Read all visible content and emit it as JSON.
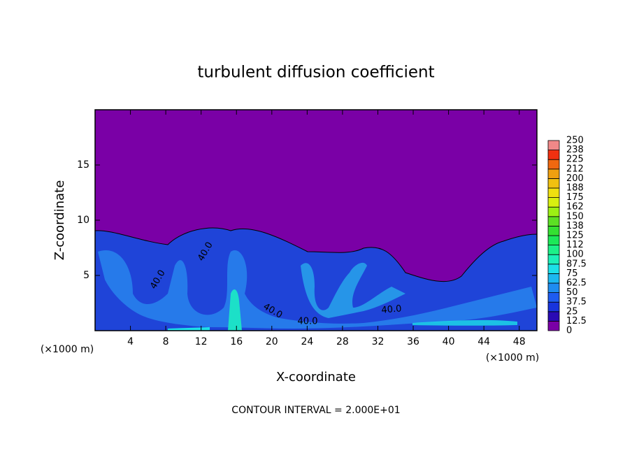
{
  "chart_data": {
    "type": "contour",
    "title": "turbulent diffusion coefficient",
    "xlabel": "X-coordinate",
    "ylabel": "Z-coordinate",
    "y_scale_label": "(×1000 m)",
    "x_scale_label": "(×1000 m)",
    "annotation": "CONTOUR INTERVAL = 2.000E+01",
    "xlim": [
      0,
      50
    ],
    "xticks": [
      4,
      8,
      12,
      16,
      20,
      24,
      28,
      32,
      36,
      40,
      44,
      48
    ],
    "ylim": [
      0,
      20
    ],
    "yticks": [
      5,
      10,
      15
    ],
    "contour_labels": [
      "40.0",
      "40.0",
      "40.0",
      "40.0",
      "40.0"
    ],
    "colorbar": {
      "ticks": [
        0,
        12.5,
        25,
        37.5,
        50,
        62.5,
        75,
        87.5,
        100,
        {
          "value": 112.5,
          "label": "112"
        },
        125,
        {
          "value": 137.5,
          "label": "138"
        },
        150,
        {
          "value": 162.5,
          "label": "162"
        },
        175,
        {
          "value": 187.5,
          "label": "188"
        },
        200,
        {
          "value": 212.5,
          "label": "212"
        },
        225,
        {
          "value": 237.5,
          "label": "238"
        },
        250
      ],
      "colors": [
        "#7a00a6",
        "#2a0ab4",
        "#1834dc",
        "#1e5cf0",
        "#1e8cf0",
        "#1cb8f0",
        "#1ce0e8",
        "#1cf0b8",
        "#1cf088",
        "#1ce858",
        "#34e032",
        "#5ce024",
        "#9cf014",
        "#d8f010",
        "#f0e010",
        "#f0c010",
        "#f0a010",
        "#f06810",
        "#f03010",
        "#f08888"
      ]
    }
  }
}
